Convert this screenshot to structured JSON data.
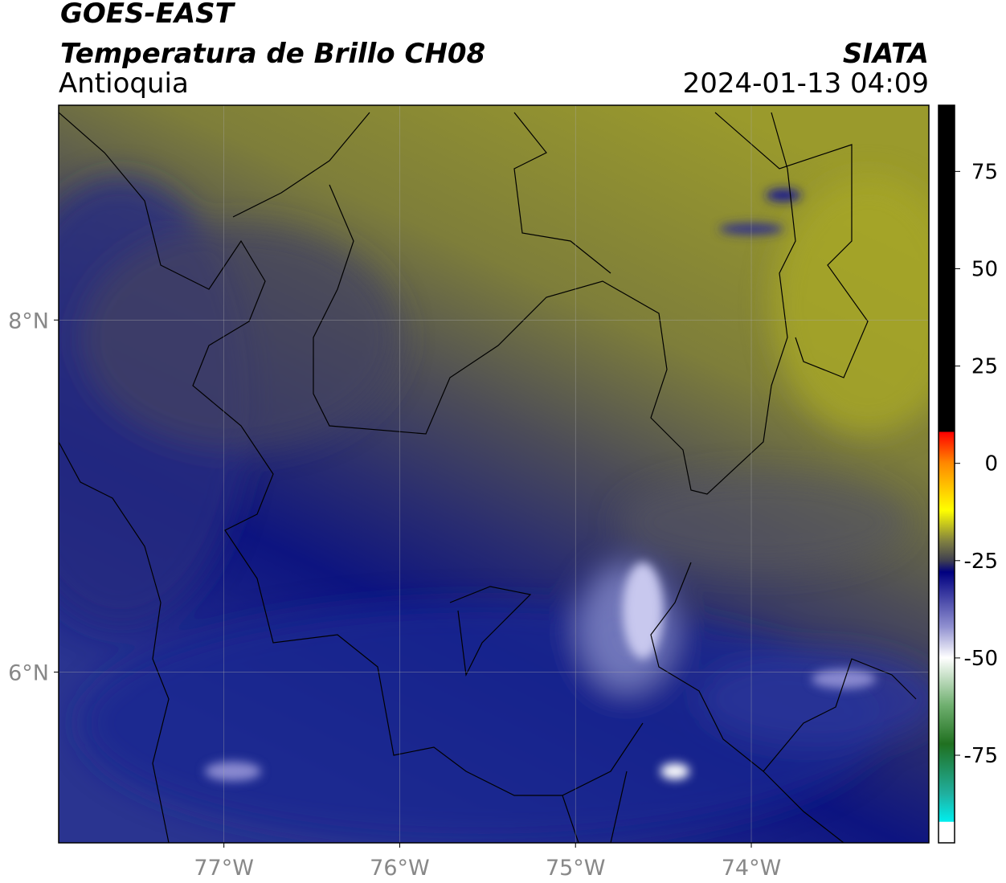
{
  "title": "GOES-EAST",
  "subtitle": "Temperatura de Brillo CH08",
  "region": "Antioquia",
  "source": "SIATA",
  "timestamp": "2024-01-13 04:09",
  "map": {
    "xlim": [
      -77.94,
      -72.99
    ],
    "ylim": [
      5.03,
      9.22
    ],
    "lon_ticks": [
      {
        "value": -77,
        "label": "77°W"
      },
      {
        "value": -76,
        "label": "76°W"
      },
      {
        "value": -75,
        "label": "75°W"
      },
      {
        "value": -74,
        "label": "74°W"
      }
    ],
    "lat_ticks": [
      {
        "value": 8,
        "label": "8°N"
      },
      {
        "value": 6,
        "label": "6°N"
      }
    ]
  },
  "colorbar": {
    "lim": [
      -97.5,
      92
    ],
    "ticks": [
      75,
      50,
      25,
      0,
      -25,
      -50,
      -75
    ]
  }
}
